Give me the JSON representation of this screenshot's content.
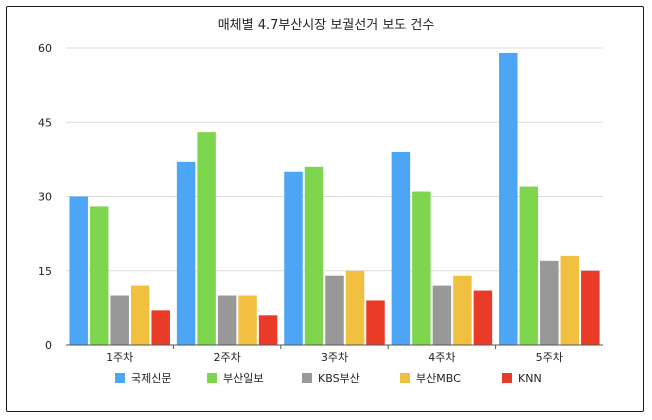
{
  "chart_data": {
    "type": "bar",
    "title": "매체별 4.7부산시장 보궐선거 보도 건수",
    "xlabel": "",
    "ylabel": "",
    "categories": [
      "1주차",
      "2주차",
      "3주차",
      "4주차",
      "5주차"
    ],
    "ylim": [
      0,
      60
    ],
    "yticks": [
      0,
      15,
      30,
      45,
      60
    ],
    "grid": true,
    "legend_position": "bottom",
    "series": [
      {
        "name": "국제신문",
        "color": "#4da6f5",
        "values": [
          30,
          37,
          35,
          39,
          59
        ]
      },
      {
        "name": "부산일보",
        "color": "#7ed64f",
        "values": [
          28,
          43,
          36,
          31,
          32
        ]
      },
      {
        "name": "KBS부산",
        "color": "#989898",
        "values": [
          10,
          10,
          14,
          12,
          17
        ]
      },
      {
        "name": "부산MBC",
        "color": "#f2c040",
        "values": [
          12,
          10,
          15,
          14,
          18
        ]
      },
      {
        "name": "KNN",
        "color": "#ea3a28",
        "values": [
          7,
          6,
          9,
          11,
          15
        ]
      }
    ]
  }
}
